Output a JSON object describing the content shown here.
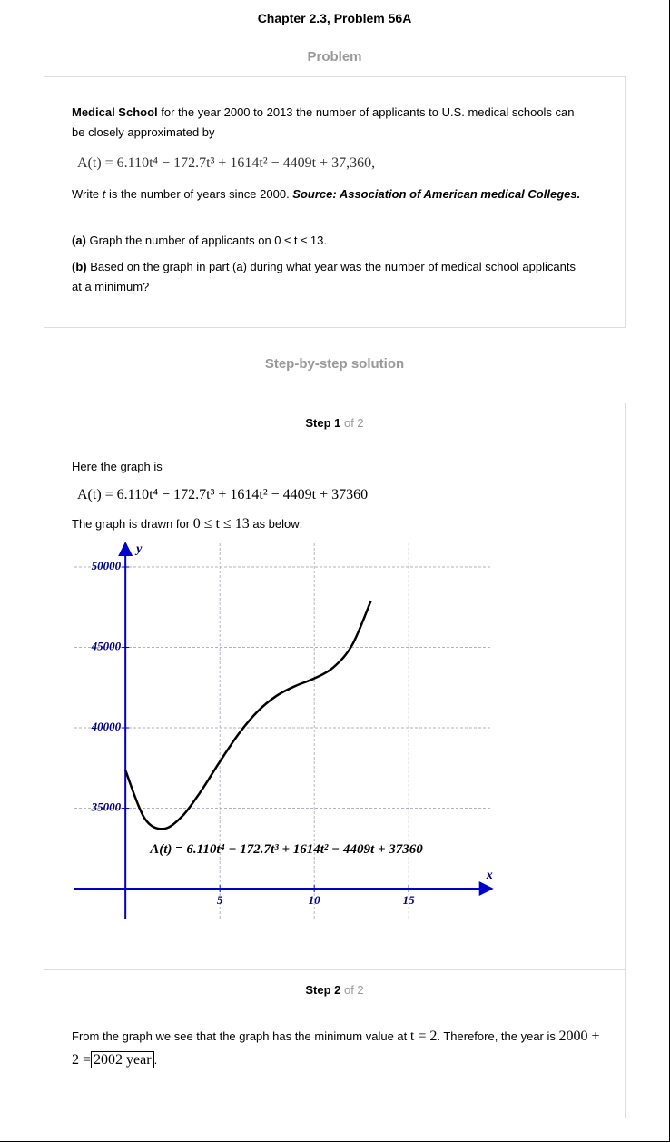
{
  "header": {
    "title": "Chapter 2.3, Problem 56A"
  },
  "problem": {
    "heading": "Problem",
    "lead": "Medical School",
    "intro": " for the year 2000 to 2013 the number of applicants to U.S. medical schools can be closely approximated by",
    "equation": "A(t) = 6.110t⁴ − 172.7t³ + 1614t² − 4409t + 37,360,",
    "write_a": "Write ",
    "write_var": "t",
    "write_b": " is the number of years since 2000. ",
    "source": "Source: Association of American medical Colleges.",
    "part_a_label": "(a)",
    "part_a": " Graph the number of applicants on 0 ≤ t ≤ 13.",
    "part_b_label": "(b)",
    "part_b": " Based on the graph in part (a) during what year was the number of medical school applicants at a minimum?"
  },
  "solution": {
    "heading": "Step-by-step solution",
    "step1": {
      "label": "Step 1",
      "of": " of 2",
      "text1": "Here the graph is",
      "equation": "A(t) = 6.110t⁴ − 172.7t³ + 1614t² − 4409t + 37360",
      "text2a": "The graph is drawn for",
      "range": "0 ≤ t ≤ 13",
      "text2b": "as below:"
    },
    "step2": {
      "label": "Step 2",
      "of": " of 2",
      "text1": "From the graph we see that the graph has the minimum value at",
      "t_eq": "t = 2",
      "text2": ". Therefore, the year is",
      "sum": "2000 + 2 =",
      "answer": "2002 year",
      "end": "."
    }
  },
  "chart_data": {
    "type": "line",
    "annotation": "A(t) = 6.110t⁴ − 172.7t³ + 1614t² − 4409t + 37360",
    "x_label": "x",
    "y_label": "y",
    "x": [
      0,
      1,
      2,
      3,
      4,
      5,
      6,
      7,
      8,
      9,
      10,
      11,
      12,
      13
    ],
    "values": [
      37360,
      34398,
      33714,
      34491,
      36059,
      37896,
      39625,
      41017,
      41988,
      42602,
      43070,
      43748,
      45139,
      47895
    ],
    "color": "#000000",
    "axis_color": "#0000cc",
    "grid": true,
    "xlim": [
      -2.7,
      19.4
    ],
    "ylim": [
      28080,
      51470
    ],
    "xticks": [
      5,
      10,
      15
    ],
    "yticks": [
      35000,
      40000,
      45000,
      50000
    ]
  }
}
